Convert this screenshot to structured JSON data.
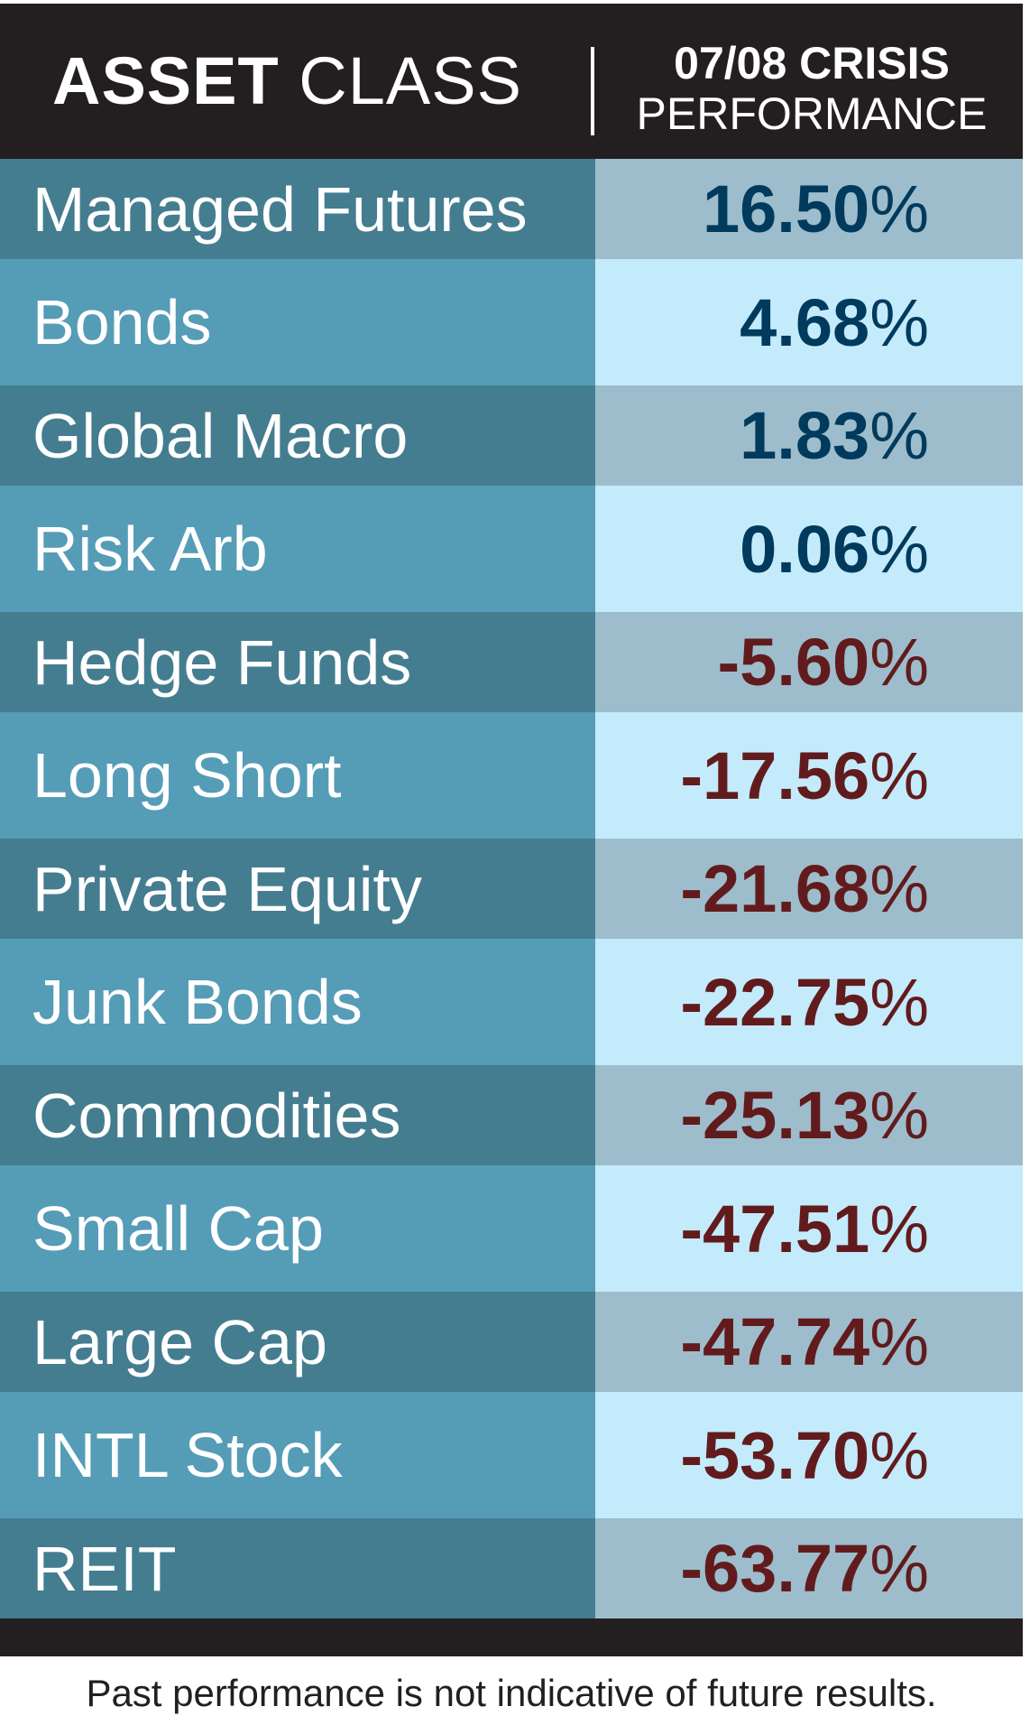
{
  "header": {
    "col1_bold": "ASSET",
    "col1_rest": "CLASS",
    "col2_line1": "07/08 CRISIS",
    "col2_line2": "PERFORMANCE"
  },
  "rows": [
    {
      "label": "Managed Futures",
      "value": "16.50",
      "sign": "pos"
    },
    {
      "label": "Bonds",
      "value": "4.68",
      "sign": "pos"
    },
    {
      "label": "Global Macro",
      "value": "1.83",
      "sign": "pos"
    },
    {
      "label": "Risk Arb",
      "value": "0.06",
      "sign": "pos"
    },
    {
      "label": "Hedge Funds",
      "value": "-5.60",
      "sign": "neg"
    },
    {
      "label": "Long Short",
      "value": "-17.56",
      "sign": "neg"
    },
    {
      "label": "Private Equity",
      "value": "-21.68",
      "sign": "neg"
    },
    {
      "label": "Junk Bonds",
      "value": "-22.75",
      "sign": "neg"
    },
    {
      "label": "Commodities",
      "value": "-25.13",
      "sign": "neg"
    },
    {
      "label": "Small Cap",
      "value": "-47.51",
      "sign": "neg"
    },
    {
      "label": "Large Cap",
      "value": "-47.74",
      "sign": "neg"
    },
    {
      "label": "INTL Stock",
      "value": "-53.70",
      "sign": "neg"
    },
    {
      "label": "REIT",
      "value": "-63.77",
      "sign": "neg"
    }
  ],
  "percent_sign": "%",
  "disclaimer": "Past performance is not indicative of future results.",
  "colors": {
    "header": "#231f20",
    "positive": "#003a5c",
    "negative": "#621b1d"
  }
}
